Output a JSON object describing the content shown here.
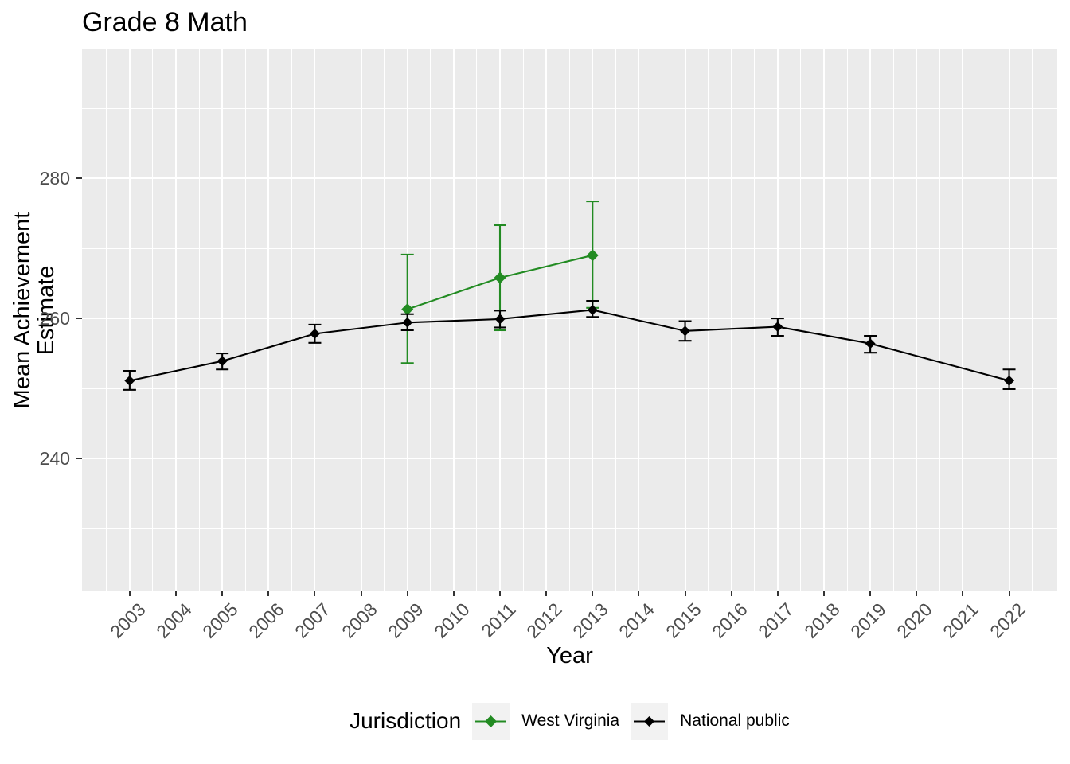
{
  "title": "Grade 8 Math",
  "axes": {
    "x_label": "Year",
    "y_label": "Mean Achievement Estimate"
  },
  "legend": {
    "title": "Jurisdiction",
    "entries": [
      {
        "label": "West Virginia",
        "color": "#228B22"
      },
      {
        "label": "National public",
        "color": "#000000"
      }
    ]
  },
  "colors": {
    "panel_background": "#EBEBEB",
    "gridline": "#FFFFFF",
    "tick_label": "#4D4D4D",
    "tick_mark": "#333333",
    "legend_key_background": "#F2F2F2",
    "west_virginia_green": "#228B22",
    "national_public_black": "#000000"
  },
  "chart_data": {
    "type": "line",
    "title": "Grade 8 Math",
    "xlabel": "Year",
    "ylabel": "Mean Achievement Estimate",
    "legend_title": "Jurisdiction",
    "legend_position": "bottom",
    "grid": true,
    "has_error_bars": true,
    "point_shape": "diamond",
    "x_ticks": [
      2003,
      2004,
      2005,
      2006,
      2007,
      2008,
      2009,
      2010,
      2011,
      2012,
      2013,
      2014,
      2015,
      2016,
      2017,
      2018,
      2019,
      2020,
      2021,
      2022
    ],
    "y_ticks": [
      240,
      260,
      280
    ],
    "y_minor_gridlines": [
      230,
      250,
      270,
      290
    ],
    "x_minor_gridline_step": 0.5,
    "x_range": [
      2001.97,
      2023.04
    ],
    "y_range": [
      221.14,
      298.41
    ],
    "series": [
      {
        "name": "West Virginia",
        "color": "#228B22",
        "points": [
          {
            "x": 2009,
            "y": 261.3,
            "low": 253.6,
            "high": 269.1
          },
          {
            "x": 2011,
            "y": 265.8,
            "low": 258.3,
            "high": 273.3
          },
          {
            "x": 2013,
            "y": 269.0,
            "low": 261.5,
            "high": 276.7
          }
        ]
      },
      {
        "name": "National public",
        "color": "#000000",
        "points": [
          {
            "x": 2003,
            "y": 251.1,
            "low": 249.8,
            "high": 252.5
          },
          {
            "x": 2005,
            "y": 253.9,
            "low": 252.7,
            "high": 255.0
          },
          {
            "x": 2007,
            "y": 257.8,
            "low": 256.5,
            "high": 259.1
          },
          {
            "x": 2009,
            "y": 259.4,
            "low": 258.3,
            "high": 260.6
          },
          {
            "x": 2011,
            "y": 259.9,
            "low": 258.7,
            "high": 261.1
          },
          {
            "x": 2013,
            "y": 261.2,
            "low": 260.2,
            "high": 262.5
          },
          {
            "x": 2015,
            "y": 258.2,
            "low": 256.8,
            "high": 259.6
          },
          {
            "x": 2017,
            "y": 258.8,
            "low": 257.5,
            "high": 260.0
          },
          {
            "x": 2019,
            "y": 256.4,
            "low": 255.1,
            "high": 257.5
          },
          {
            "x": 2022,
            "y": 251.1,
            "low": 249.9,
            "high": 252.7
          }
        ]
      }
    ]
  }
}
